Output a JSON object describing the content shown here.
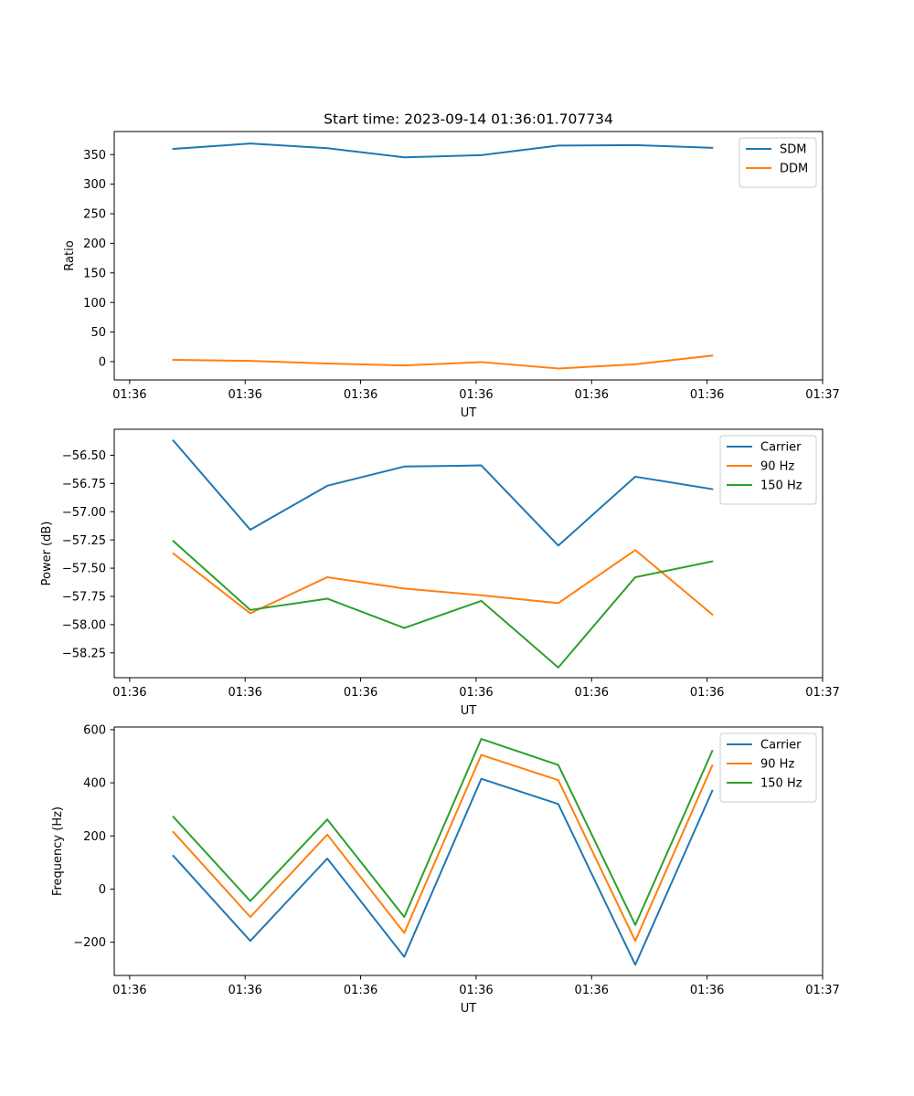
{
  "figure_title": "Start time: 2023-09-14 01:36:01.707734",
  "chart_data": [
    {
      "type": "line",
      "title": "Start time: 2023-09-14 01:36:01.707734",
      "xlabel": "UT",
      "ylabel": "Ratio",
      "xlim": [
        -0.2,
        9.0
      ],
      "ylim": [
        -31,
        389
      ],
      "x": [
        0.567,
        1.567,
        2.567,
        3.567,
        4.567,
        5.567,
        6.567,
        7.567
      ],
      "xticks": [
        {
          "value": 0,
          "label": "01:36"
        },
        {
          "value": 1.5,
          "label": "01:36"
        },
        {
          "value": 3,
          "label": "01:36"
        },
        {
          "value": 4.5,
          "label": "01:36"
        },
        {
          "value": 6,
          "label": "01:36"
        },
        {
          "value": 7.5,
          "label": "01:36"
        },
        {
          "value": 9,
          "label": "01:37"
        }
      ],
      "yticks": [
        {
          "value": 350,
          "label": "350"
        },
        {
          "value": 300,
          "label": "300"
        },
        {
          "value": 250,
          "label": "250"
        },
        {
          "value": 200,
          "label": "200"
        },
        {
          "value": 150,
          "label": "150"
        },
        {
          "value": 100,
          "label": "100"
        },
        {
          "value": 50,
          "label": "50"
        },
        {
          "value": 0,
          "label": "0"
        }
      ],
      "legend_position": "top-right",
      "series": [
        {
          "name": "SDM",
          "color": "#1f77b4",
          "values": [
            359.6,
            368.7,
            360.8,
            345.3,
            349.1,
            365.3,
            366.0,
            361.4
          ]
        },
        {
          "name": "DDM",
          "color": "#ff7f0e",
          "values": [
            2.9,
            1.3,
            -3.3,
            -6.4,
            -0.8,
            -11.6,
            -4.5,
            10.2
          ]
        }
      ]
    },
    {
      "type": "line",
      "title": "",
      "xlabel": "UT",
      "ylabel": "Power (dB)",
      "xlim": [
        -0.2,
        9.0
      ],
      "ylim": [
        -58.47,
        -56.27
      ],
      "x": [
        0.567,
        1.567,
        2.567,
        3.567,
        4.567,
        5.567,
        6.567,
        7.567
      ],
      "xticks": [
        {
          "value": 0,
          "label": "01:36"
        },
        {
          "value": 1.5,
          "label": "01:36"
        },
        {
          "value": 3,
          "label": "01:36"
        },
        {
          "value": 4.5,
          "label": "01:36"
        },
        {
          "value": 6,
          "label": "01:36"
        },
        {
          "value": 7.5,
          "label": "01:36"
        },
        {
          "value": 9,
          "label": "01:37"
        }
      ],
      "yticks": [
        {
          "value": -56.5,
          "label": "−56.50"
        },
        {
          "value": -56.75,
          "label": "−56.75"
        },
        {
          "value": -57.0,
          "label": "−57.00"
        },
        {
          "value": -57.25,
          "label": "−57.25"
        },
        {
          "value": -57.5,
          "label": "−57.50"
        },
        {
          "value": -57.75,
          "label": "−57.75"
        },
        {
          "value": -58.0,
          "label": "−58.00"
        },
        {
          "value": -58.25,
          "label": "−58.25"
        }
      ],
      "legend_position": "top-right",
      "series": [
        {
          "name": "Carrier",
          "color": "#1f77b4",
          "values": [
            -56.37,
            -57.16,
            -56.77,
            -56.6,
            -56.59,
            -57.3,
            -56.69,
            -56.8
          ]
        },
        {
          "name": "90 Hz",
          "color": "#ff7f0e",
          "values": [
            -57.37,
            -57.9,
            -57.58,
            -57.68,
            -57.74,
            -57.81,
            -57.34,
            -57.91
          ]
        },
        {
          "name": "150 Hz",
          "color": "#2ca02c",
          "values": [
            -57.26,
            -57.87,
            -57.77,
            -58.03,
            -57.79,
            -58.38,
            -57.58,
            -57.44
          ]
        }
      ]
    },
    {
      "type": "line",
      "title": "",
      "xlabel": "UT",
      "ylabel": "Frequency (Hz)",
      "xlim": [
        -0.2,
        9.0
      ],
      "ylim": [
        -325,
        610
      ],
      "x": [
        0.567,
        1.567,
        2.567,
        3.567,
        4.567,
        5.567,
        6.567,
        7.567
      ],
      "xticks": [
        {
          "value": 0,
          "label": "01:36"
        },
        {
          "value": 1.5,
          "label": "01:36"
        },
        {
          "value": 3,
          "label": "01:36"
        },
        {
          "value": 4.5,
          "label": "01:36"
        },
        {
          "value": 6,
          "label": "01:36"
        },
        {
          "value": 7.5,
          "label": "01:36"
        },
        {
          "value": 9,
          "label": "01:37"
        }
      ],
      "yticks": [
        {
          "value": 600,
          "label": "600"
        },
        {
          "value": 400,
          "label": "400"
        },
        {
          "value": 200,
          "label": "200"
        },
        {
          "value": 0,
          "label": "0"
        },
        {
          "value": -200,
          "label": "−200"
        }
      ],
      "legend_position": "top-right",
      "series": [
        {
          "name": "Carrier",
          "color": "#1f77b4",
          "values": [
            125,
            -195,
            115,
            -255,
            415,
            320,
            -285,
            370
          ]
        },
        {
          "name": "90 Hz",
          "color": "#ff7f0e",
          "values": [
            215,
            -105,
            205,
            -165,
            505,
            410,
            -195,
            465
          ]
        },
        {
          "name": "150 Hz",
          "color": "#2ca02c",
          "values": [
            272,
            -45,
            262,
            -105,
            565,
            467,
            -135,
            520
          ]
        }
      ]
    }
  ]
}
